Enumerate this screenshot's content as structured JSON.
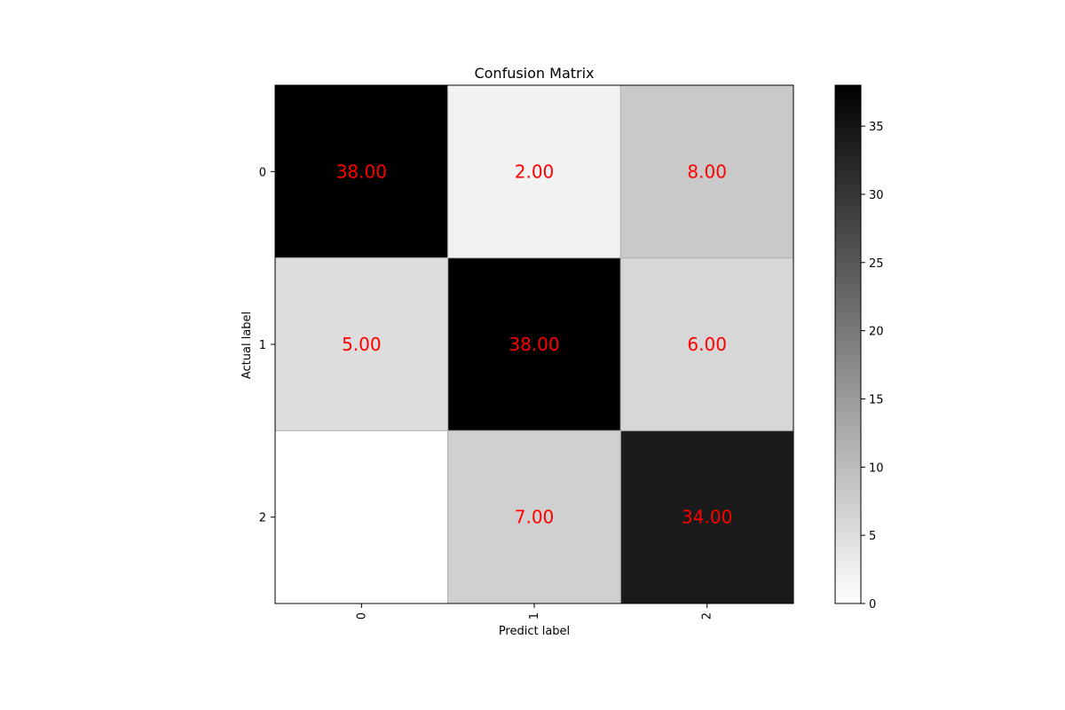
{
  "chart_data": {
    "type": "heatmap",
    "title": "Confusion Matrix",
    "xlabel": "Predict label",
    "ylabel": "Actual label",
    "x_categories": [
      "0",
      "1",
      "2"
    ],
    "y_categories": [
      "0",
      "1",
      "2"
    ],
    "values": [
      [
        38,
        2,
        8
      ],
      [
        5,
        38,
        6
      ],
      [
        0,
        7,
        34
      ]
    ],
    "cell_labels": [
      [
        "38.00",
        "2.00",
        "8.00"
      ],
      [
        "5.00",
        "38.00",
        "6.00"
      ],
      [
        "",
        "7.00",
        "34.00"
      ]
    ],
    "colormap": "grayscale (white = low, black = high)",
    "value_range": [
      0,
      38
    ],
    "colorbar_ticks": [
      "0",
      "5",
      "10",
      "15",
      "20",
      "25",
      "30",
      "35"
    ],
    "x_tick_rotation": "vertical",
    "cell_label_color": "#ff0000",
    "grid": false
  }
}
